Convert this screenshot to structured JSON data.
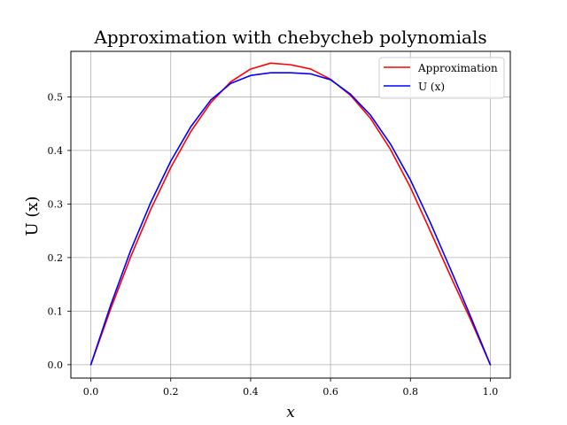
{
  "chart_data": {
    "type": "line",
    "title": "Approximation with chebycheb polynomials",
    "xlabel": "x",
    "ylabel": "U (x)",
    "xlim": [
      -0.05,
      1.05
    ],
    "ylim": [
      -0.025,
      0.585
    ],
    "xticks": [
      0.0,
      0.2,
      0.4,
      0.6,
      0.8,
      1.0
    ],
    "xtick_labels": [
      "0.0",
      "0.2",
      "0.4",
      "0.6",
      "0.8",
      "1.0"
    ],
    "yticks": [
      0.0,
      0.1,
      0.2,
      0.3,
      0.4,
      0.5
    ],
    "ytick_labels": [
      "0.0",
      "0.1",
      "0.2",
      "0.3",
      "0.4",
      "0.5"
    ],
    "grid": true,
    "legend_position": "top-right",
    "series": [
      {
        "name": "Approximation",
        "color": "#ff0000",
        "x": [
          0.0,
          0.05,
          0.1,
          0.15,
          0.2,
          0.25,
          0.3,
          0.35,
          0.4,
          0.45,
          0.5,
          0.55,
          0.6,
          0.65,
          0.7,
          0.75,
          0.8,
          0.85,
          0.9,
          0.95,
          1.0
        ],
        "y": [
          0.0,
          0.105,
          0.202,
          0.29,
          0.368,
          0.435,
          0.489,
          0.528,
          0.552,
          0.563,
          0.56,
          0.552,
          0.533,
          0.503,
          0.46,
          0.402,
          0.331,
          0.249,
          0.166,
          0.085,
          0.0
        ]
      },
      {
        "name": "U (x)",
        "color": "#0000ff",
        "x": [
          0.0,
          0.05,
          0.1,
          0.15,
          0.2,
          0.25,
          0.3,
          0.35,
          0.4,
          0.45,
          0.5,
          0.55,
          0.6,
          0.65,
          0.7,
          0.75,
          0.8,
          0.85,
          0.9,
          0.95,
          1.0
        ],
        "y": [
          0.0,
          0.112,
          0.214,
          0.303,
          0.38,
          0.444,
          0.494,
          0.525,
          0.54,
          0.545,
          0.545,
          0.543,
          0.532,
          0.505,
          0.466,
          0.412,
          0.345,
          0.265,
          0.179,
          0.091,
          0.0
        ]
      }
    ]
  }
}
